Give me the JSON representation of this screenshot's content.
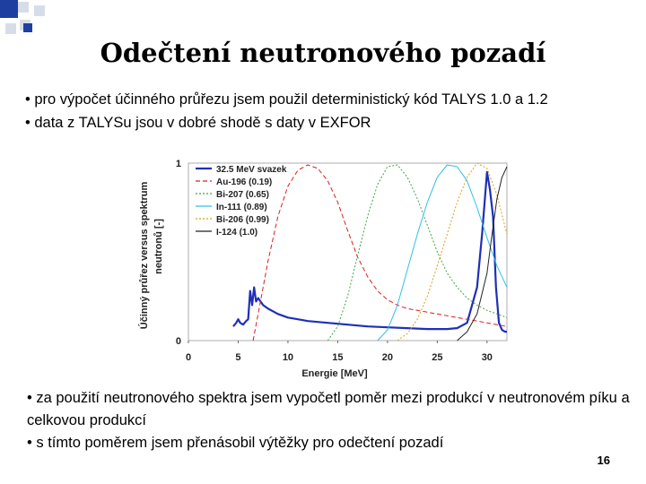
{
  "slide": {
    "title": "Odečtení neutronového pozadí",
    "bullets_top": [
      "• pro výpočet účinného průřezu jsem použil deterministický kód TALYS 1.0 a 1.2",
      "• data z TALYSu jsou v dobré shodě s daty v EXFOR"
    ],
    "bullets_bottom": [
      "• za použití neutronového spektra jsem vypočetl poměr mezi produkcí v neutronovém píku a celkovou produkcí",
      "• s tímto poměrem jsem přenásobil výtěžky pro odečtení pozadí"
    ],
    "page_number": "16",
    "colors": {
      "accent": "#1f3fa0",
      "deco_square": "#d7dde8"
    }
  },
  "chart_data": {
    "type": "line",
    "xlabel": "Energie [MeV]",
    "ylabel_line1": "Účinný průřez versus spektrum",
    "ylabel_line2": "neutronů [-]",
    "xlim": [
      0,
      32
    ],
    "ylim": [
      0,
      1
    ],
    "x_ticks": [
      "0",
      "5",
      "10",
      "15",
      "20",
      "25",
      "30"
    ],
    "y_ticks": [
      "0",
      "1"
    ],
    "legend_position": "top-left",
    "series": [
      {
        "name": "32.5 MeV svazek",
        "color": "#1f2fb8",
        "style": "solid",
        "width": 2.2,
        "x": [
          4.5,
          4.8,
          5.0,
          5.2,
          5.5,
          5.8,
          6.0,
          6.2,
          6.4,
          6.5,
          6.6,
          6.8,
          7.0,
          7.5,
          8,
          9,
          10,
          11,
          12,
          13,
          14,
          15,
          16,
          18,
          20,
          22,
          24,
          26,
          27,
          28,
          29,
          29.5,
          30,
          30.3,
          30.6,
          30.9,
          31.2,
          31.5,
          31.8,
          32.0
        ],
        "y": [
          0.08,
          0.1,
          0.12,
          0.1,
          0.09,
          0.11,
          0.12,
          0.28,
          0.2,
          0.25,
          0.3,
          0.22,
          0.24,
          0.2,
          0.18,
          0.15,
          0.13,
          0.12,
          0.11,
          0.105,
          0.1,
          0.095,
          0.09,
          0.08,
          0.075,
          0.07,
          0.065,
          0.065,
          0.07,
          0.1,
          0.3,
          0.6,
          0.95,
          0.85,
          0.7,
          0.3,
          0.1,
          0.06,
          0.05,
          0.05
        ]
      },
      {
        "name": "Au-196 (0.19)",
        "color": "#d62020",
        "style": "dashed",
        "width": 1,
        "x": [
          6.5,
          7,
          8,
          9,
          10,
          11,
          12,
          13,
          14,
          15,
          16,
          17,
          18,
          19,
          20,
          21,
          22,
          23,
          24,
          25,
          26,
          27,
          28,
          29,
          30,
          31,
          32
        ],
        "y": [
          0.0,
          0.15,
          0.45,
          0.7,
          0.87,
          0.96,
          0.99,
          0.97,
          0.9,
          0.78,
          0.62,
          0.47,
          0.36,
          0.28,
          0.23,
          0.2,
          0.18,
          0.17,
          0.16,
          0.15,
          0.14,
          0.13,
          0.12,
          0.11,
          0.1,
          0.09,
          0.08
        ]
      },
      {
        "name": "Bi-207 (0.65)",
        "color": "#3fa64a",
        "style": "dotted",
        "width": 1,
        "x": [
          14,
          15,
          16,
          17,
          18,
          19,
          20,
          21,
          22,
          23,
          24,
          25,
          26,
          27,
          28,
          29,
          30,
          31,
          32
        ],
        "y": [
          0.0,
          0.08,
          0.25,
          0.48,
          0.7,
          0.88,
          0.98,
          0.99,
          0.92,
          0.8,
          0.65,
          0.5,
          0.38,
          0.3,
          0.24,
          0.2,
          0.17,
          0.15,
          0.13
        ]
      },
      {
        "name": "In-111 (0.89)",
        "color": "#2ec0e8",
        "style": "solid",
        "width": 1,
        "x": [
          19,
          20,
          21,
          22,
          23,
          24,
          25,
          26,
          27,
          28,
          29,
          30,
          31,
          32
        ],
        "y": [
          0.0,
          0.06,
          0.2,
          0.4,
          0.6,
          0.78,
          0.92,
          0.99,
          0.98,
          0.9,
          0.75,
          0.58,
          0.42,
          0.3
        ]
      },
      {
        "name": "Bi-206 (0.99)",
        "color": "#d9a21a",
        "style": "dotted",
        "width": 1,
        "x": [
          21,
          22,
          23,
          24,
          25,
          26,
          27,
          28,
          29,
          30,
          31,
          32
        ],
        "y": [
          0.0,
          0.04,
          0.12,
          0.25,
          0.42,
          0.6,
          0.78,
          0.92,
          1.0,
          0.97,
          0.82,
          0.6
        ]
      },
      {
        "name": "I-124 (1.0)",
        "color": "#222222",
        "style": "solid",
        "width": 1,
        "x": [
          27,
          28,
          29,
          30,
          30.5,
          31,
          31.5,
          32
        ],
        "y": [
          0.0,
          0.05,
          0.15,
          0.38,
          0.6,
          0.8,
          0.92,
          0.98
        ]
      }
    ]
  }
}
